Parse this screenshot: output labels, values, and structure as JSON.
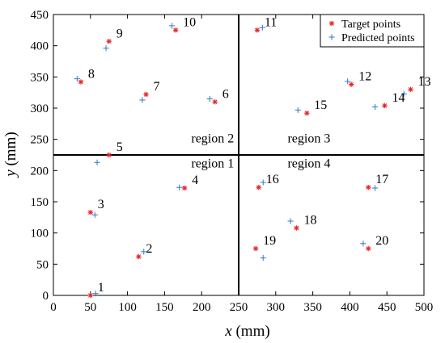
{
  "chart_data": {
    "type": "scatter",
    "title": "",
    "xlabel_var": "x",
    "xlabel_unit": " (mm)",
    "ylabel_var": "y",
    "ylabel_unit": " (mm)",
    "xlim": [
      0,
      500
    ],
    "ylim": [
      0,
      450
    ],
    "xticks": [
      0,
      50,
      100,
      150,
      200,
      250,
      300,
      350,
      400,
      450,
      500
    ],
    "yticks": [
      0,
      50,
      100,
      150,
      200,
      250,
      300,
      350,
      400,
      450
    ],
    "grid": false,
    "legend_position": "top-right",
    "divider_x": 250,
    "divider_y": 225,
    "series": [
      {
        "name": "Target points",
        "marker": "asterisk",
        "color": "#e8262b",
        "points": [
          {
            "id": "1",
            "x": 50,
            "y": 0
          },
          {
            "id": "2",
            "x": 115,
            "y": 62
          },
          {
            "id": "3",
            "x": 50,
            "y": 133
          },
          {
            "id": "4",
            "x": 177,
            "y": 172
          },
          {
            "id": "5",
            "x": 75,
            "y": 225
          },
          {
            "id": "6",
            "x": 218,
            "y": 310
          },
          {
            "id": "7",
            "x": 125,
            "y": 322
          },
          {
            "id": "8",
            "x": 37,
            "y": 342
          },
          {
            "id": "9",
            "x": 75,
            "y": 407
          },
          {
            "id": "10",
            "x": 165,
            "y": 425
          },
          {
            "id": "11",
            "x": 275,
            "y": 425
          },
          {
            "id": "12",
            "x": 402,
            "y": 338
          },
          {
            "id": "13",
            "x": 482,
            "y": 330
          },
          {
            "id": "14",
            "x": 447,
            "y": 304
          },
          {
            "id": "15",
            "x": 342,
            "y": 292
          },
          {
            "id": "16",
            "x": 277,
            "y": 173
          },
          {
            "id": "17",
            "x": 425,
            "y": 173
          },
          {
            "id": "18",
            "x": 328,
            "y": 108
          },
          {
            "id": "19",
            "x": 273,
            "y": 75
          },
          {
            "id": "20",
            "x": 425,
            "y": 75
          }
        ]
      },
      {
        "name": "Predicted points",
        "marker": "plus",
        "color": "#2e7bc4",
        "points": [
          {
            "x": 57,
            "y": 3
          },
          {
            "x": 122,
            "y": 70
          },
          {
            "x": 56,
            "y": 129
          },
          {
            "x": 170,
            "y": 173
          },
          {
            "x": 59,
            "y": 213
          },
          {
            "x": 211,
            "y": 315
          },
          {
            "x": 120,
            "y": 313
          },
          {
            "x": 32,
            "y": 347
          },
          {
            "x": 71,
            "y": 396
          },
          {
            "x": 160,
            "y": 432
          },
          {
            "x": 282,
            "y": 429
          },
          {
            "x": 397,
            "y": 343
          },
          {
            "x": 473,
            "y": 323
          },
          {
            "x": 434,
            "y": 302
          },
          {
            "x": 330,
            "y": 297
          },
          {
            "x": 283,
            "y": 181
          },
          {
            "x": 434,
            "y": 172
          },
          {
            "x": 320,
            "y": 119
          },
          {
            "x": 283,
            "y": 60
          },
          {
            "x": 418,
            "y": 83
          }
        ]
      }
    ],
    "regions": [
      {
        "label": "region 1",
        "x": 186,
        "y": 205
      },
      {
        "label": "region 2",
        "x": 186,
        "y": 245
      },
      {
        "label": "region 3",
        "x": 316,
        "y": 245
      },
      {
        "label": "region 4",
        "x": 316,
        "y": 205
      }
    ]
  }
}
